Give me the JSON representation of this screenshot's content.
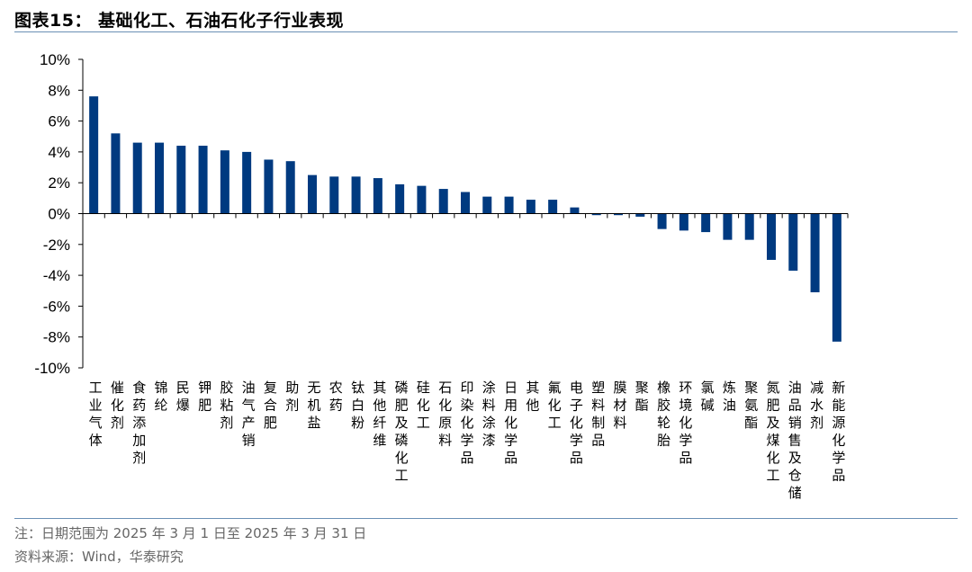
{
  "header": {
    "title": "图表15：  基础化工、石油石化子行业表现"
  },
  "footer": {
    "note": "注：日期范围为 2025 年 3 月 1 日至 2025 年 3 月 31 日",
    "source": "资料来源：Wind，华泰研究"
  },
  "chart_data": {
    "type": "bar",
    "title": "",
    "xlabel": "",
    "ylabel": "",
    "ylim": [
      -10,
      10
    ],
    "yticks": [
      "10%",
      "8%",
      "6%",
      "4%",
      "2%",
      "0%",
      "-2%",
      "-4%",
      "-6%",
      "-8%",
      "-10%"
    ],
    "bar_color": "#003a80",
    "grid": false,
    "legend": "none",
    "categories": [
      "工业气体",
      "催化剂",
      "食药添加剂",
      "锦纶",
      "民爆",
      "钾肥",
      "胶粘剂",
      "油气产销",
      "复合肥",
      "助剂",
      "无机盐",
      "农药",
      "钛白粉",
      "其他纤维",
      "磷肥及磷化工",
      "硅化工",
      "石化原料",
      "印染化学品",
      "涂料涂漆",
      "日用化学品",
      "其他",
      "氟化工",
      "电子化学品",
      "塑料制品",
      "膜材料",
      "聚酯",
      "橡胶轮胎",
      "环境化学品",
      "氯碱",
      "炼油",
      "聚氨酯",
      "氮肥及煤化工",
      "油品销售及仓储",
      "减水剂",
      "新能源化学品"
    ],
    "values": [
      7.6,
      5.2,
      4.6,
      4.6,
      4.4,
      4.4,
      4.1,
      4.0,
      3.5,
      3.4,
      2.5,
      2.4,
      2.4,
      2.3,
      1.9,
      1.8,
      1.6,
      1.4,
      1.1,
      1.1,
      0.9,
      0.9,
      0.4,
      -0.1,
      -0.1,
      -0.2,
      -1.0,
      -1.1,
      -1.2,
      -1.7,
      -1.7,
      -3.0,
      -3.7,
      -5.1,
      -8.3
    ]
  }
}
